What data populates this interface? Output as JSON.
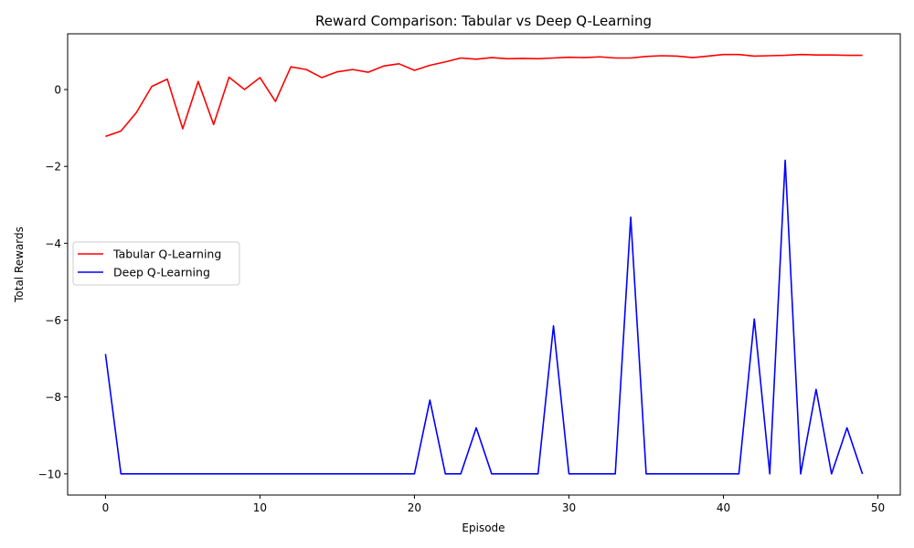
{
  "chart_data": {
    "type": "line",
    "title": "Reward Comparison: Tabular vs Deep Q-Learning",
    "xlabel": "Episode",
    "ylabel": "Total Rewards",
    "xlim": [
      -2.45,
      51.45
    ],
    "ylim": [
      -10.55,
      1.45
    ],
    "xticks": [
      0,
      10,
      20,
      30,
      40,
      50
    ],
    "yticks": [
      -10,
      -8,
      -6,
      -4,
      -2,
      0
    ],
    "xtick_labels": [
      "0",
      "10",
      "20",
      "30",
      "40",
      "50"
    ],
    "ytick_labels": [
      "−10",
      "−8",
      "−6",
      "−4",
      "−2",
      "0"
    ],
    "legend_position": "center-left",
    "series": [
      {
        "name": "Tabular Q-Learning",
        "color": "#ff0000",
        "values": [
          -1.22,
          -1.08,
          -0.6,
          0.08,
          0.27,
          -1.02,
          0.21,
          -0.91,
          0.32,
          0.0,
          0.31,
          -0.31,
          0.59,
          0.52,
          0.31,
          0.46,
          0.52,
          0.45,
          0.61,
          0.67,
          0.5,
          0.63,
          0.72,
          0.82,
          0.79,
          0.83,
          0.8,
          0.81,
          0.8,
          0.82,
          0.84,
          0.83,
          0.85,
          0.82,
          0.82,
          0.86,
          0.88,
          0.87,
          0.83,
          0.87,
          0.91,
          0.91,
          0.87,
          0.88,
          0.89,
          0.91,
          0.9,
          0.9,
          0.89,
          0.89
        ]
      },
      {
        "name": "Deep Q-Learning",
        "color": "#0000ff",
        "values": [
          -6.88,
          -10,
          -10,
          -10,
          -10,
          -10,
          -10,
          -10,
          -10,
          -10,
          -10,
          -10,
          -10,
          -10,
          -10,
          -10,
          -10,
          -10,
          -10,
          -10,
          -10,
          -8.08,
          -10,
          -10,
          -8.8,
          -10,
          -10,
          -10,
          -10,
          -6.15,
          -10,
          -10,
          -10,
          -10,
          -3.32,
          -10,
          -10,
          -10,
          -10,
          -10,
          -10,
          -10,
          -5.97,
          -10,
          -1.84,
          -10,
          -7.8,
          -10,
          -8.8,
          -10
        ]
      }
    ]
  }
}
